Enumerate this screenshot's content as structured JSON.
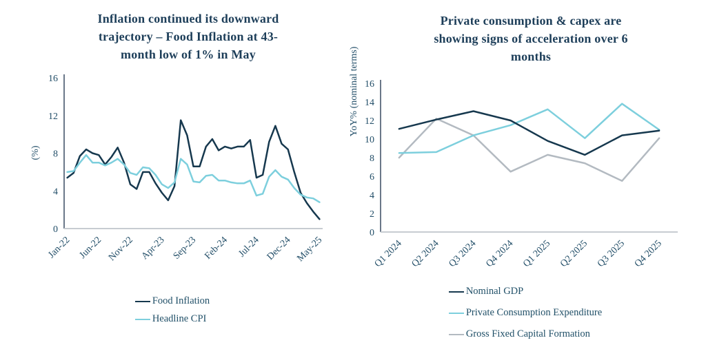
{
  "colors": {
    "background": "#ffffff",
    "title_text": "#1d3e59",
    "axis_text": "#224e68",
    "legend_text": "#215068",
    "y_axis_line": "#44556b",
    "x_axis_line": "#c7ccd1",
    "navy": "#16384e",
    "cyan": "#7dcfdd",
    "gray": "#b3bac1"
  },
  "chart_data": [
    {
      "type": "line",
      "title_lines": [
        "Inflation continued its downward",
        "trajectory – Food Inflation at 43-",
        "month low of 1% in May"
      ],
      "xlabel": "",
      "ylabel": "(%)",
      "ylim": [
        0,
        16
      ],
      "ytick_step": 4,
      "grid": false,
      "legend_position": "bottom",
      "xtick_every": 5,
      "x": [
        "Jan-22",
        "Feb-22",
        "Mar-22",
        "Apr-22",
        "May-22",
        "Jun-22",
        "Jul-22",
        "Aug-22",
        "Sep-22",
        "Oct-22",
        "Nov-22",
        "Dec-22",
        "Jan-23",
        "Feb-23",
        "Mar-23",
        "Apr-23",
        "May-23",
        "Jun-23",
        "Jul-23",
        "Aug-23",
        "Sep-23",
        "Oct-23",
        "Nov-23",
        "Dec-23",
        "Jan-24",
        "Feb-24",
        "Mar-24",
        "Apr-24",
        "May-24",
        "Jun-24",
        "Jul-24",
        "Aug-24",
        "Sep-24",
        "Oct-24",
        "Nov-24",
        "Dec-24",
        "Jan-25",
        "Feb-25",
        "Mar-25",
        "Apr-25",
        "May-25"
      ],
      "visible_xtick_labels": [
        "Jan-22",
        "Jun-22",
        "Nov-22",
        "Apr-23",
        "Sep-23",
        "Feb-24",
        "Jul-24",
        "Dec-24",
        "May-25"
      ],
      "draw_order": [
        0,
        1
      ],
      "series": [
        {
          "name": "Food Inflation",
          "color": "#16384e",
          "values": [
            5.4,
            5.9,
            7.7,
            8.4,
            8.0,
            7.8,
            6.8,
            7.6,
            8.6,
            7.0,
            4.7,
            4.2,
            6.0,
            6.0,
            4.8,
            3.8,
            3.0,
            4.5,
            11.5,
            9.9,
            6.6,
            6.6,
            8.7,
            9.5,
            8.3,
            8.7,
            8.5,
            8.7,
            8.7,
            9.4,
            5.4,
            5.7,
            9.2,
            10.9,
            9.0,
            8.4,
            6.0,
            3.8,
            2.7,
            1.8,
            1.0
          ]
        },
        {
          "name": "Headline CPI",
          "color": "#7dcfdd",
          "values": [
            6.0,
            6.1,
            7.0,
            7.8,
            7.0,
            7.0,
            6.7,
            7.0,
            7.4,
            6.8,
            5.9,
            5.7,
            6.5,
            6.4,
            5.7,
            4.7,
            4.3,
            4.9,
            7.4,
            6.8,
            5.0,
            4.9,
            5.6,
            5.7,
            5.1,
            5.1,
            4.9,
            4.8,
            4.8,
            5.1,
            3.5,
            3.7,
            5.5,
            6.2,
            5.5,
            5.2,
            4.3,
            3.6,
            3.3,
            3.2,
            2.8
          ]
        }
      ]
    },
    {
      "type": "line",
      "title_lines": [
        "Private consumption & capex are",
        "showing signs of acceleration over 6",
        "months"
      ],
      "xlabel": "",
      "ylabel": "YoY% (nominal terms)",
      "ylim": [
        0,
        16
      ],
      "ytick_step": 2,
      "grid": false,
      "legend_position": "bottom",
      "xtick_every": 1,
      "x": [
        "Q1 2024",
        "Q2 2024",
        "Q3 2024",
        "Q4 2024",
        "Q1 2025",
        "Q2 2025",
        "Q3 2025",
        "Q4 2025"
      ],
      "visible_xtick_labels": [
        "Q1 2024",
        "Q2 2024",
        "Q3 2024",
        "Q4 2024",
        "Q1 2025",
        "Q2 2025",
        "Q3 2025",
        "Q4 2025"
      ],
      "draw_order": [
        2,
        1,
        0
      ],
      "series": [
        {
          "name": "Nominal GDP",
          "color": "#16384e",
          "values": [
            11.1,
            12.1,
            13.0,
            12.0,
            9.8,
            8.3,
            10.4,
            10.9
          ]
        },
        {
          "name": "Private Consumption Expenditure",
          "color": "#7dcfdd",
          "values": [
            8.5,
            8.6,
            10.4,
            11.5,
            13.2,
            10.1,
            13.8,
            11.0
          ]
        },
        {
          "name": "Gross Fixed Capital Formation",
          "color": "#b3bac1",
          "values": [
            8.0,
            12.2,
            10.4,
            6.5,
            8.3,
            7.4,
            5.5,
            10.1
          ]
        }
      ]
    }
  ]
}
